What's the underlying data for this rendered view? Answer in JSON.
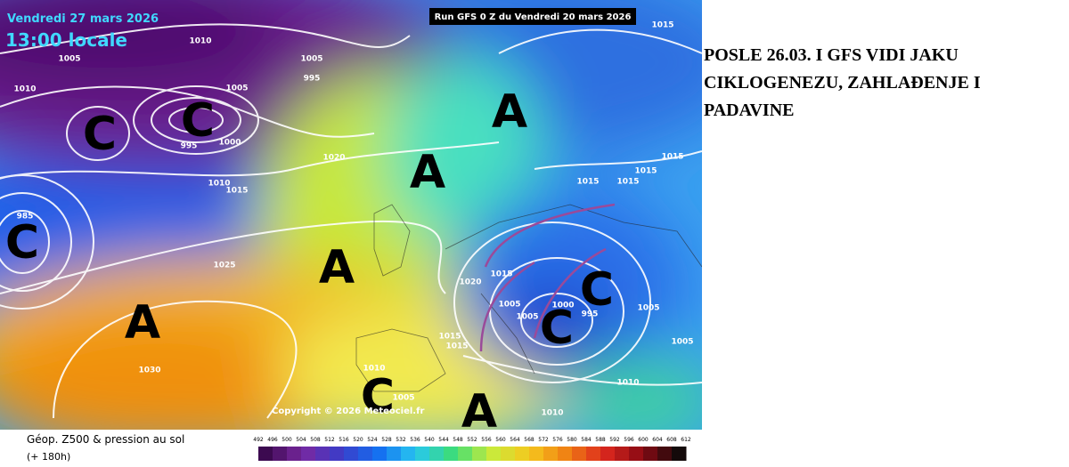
{
  "header": {
    "date": "Vendredi 27 mars 2026",
    "time": "13:00 locale",
    "run": "Run GFS 0 Z du Vendredi 20 mars 2026"
  },
  "annotation": {
    "lines": [
      "POSLE 26.03. I GFS VIDI JAKU",
      "CIKLOGENEZU, ZAHLAĐENJE I",
      "PADAVINE"
    ]
  },
  "map": {
    "pressure_labels": [
      1010,
      1005,
      1010,
      1005,
      995,
      1005,
      1000,
      995,
      1020,
      1010,
      1015,
      985,
      1025,
      1030,
      1020,
      1015,
      1005,
      1005,
      1000,
      995,
      1005,
      1005,
      1010,
      1010,
      1010,
      1005,
      1015,
      1015,
      1015,
      1015,
      1015,
      1015,
      1015
    ],
    "centers": [
      "C",
      "C",
      "C",
      "A",
      "A",
      "A",
      "A",
      "C",
      "C",
      "C",
      "A"
    ],
    "copyright": "Copyright © 2026 Meteociel.fr"
  },
  "footer": {
    "title": "Géop. Z500 & pression au sol",
    "lead": "(+ 180h)",
    "scale": [
      492,
      496,
      500,
      504,
      508,
      512,
      516,
      520,
      524,
      528,
      532,
      536,
      540,
      544,
      548,
      552,
      556,
      560,
      564,
      568,
      572,
      576,
      580,
      584,
      588,
      592,
      596,
      600,
      604,
      608,
      612
    ]
  }
}
